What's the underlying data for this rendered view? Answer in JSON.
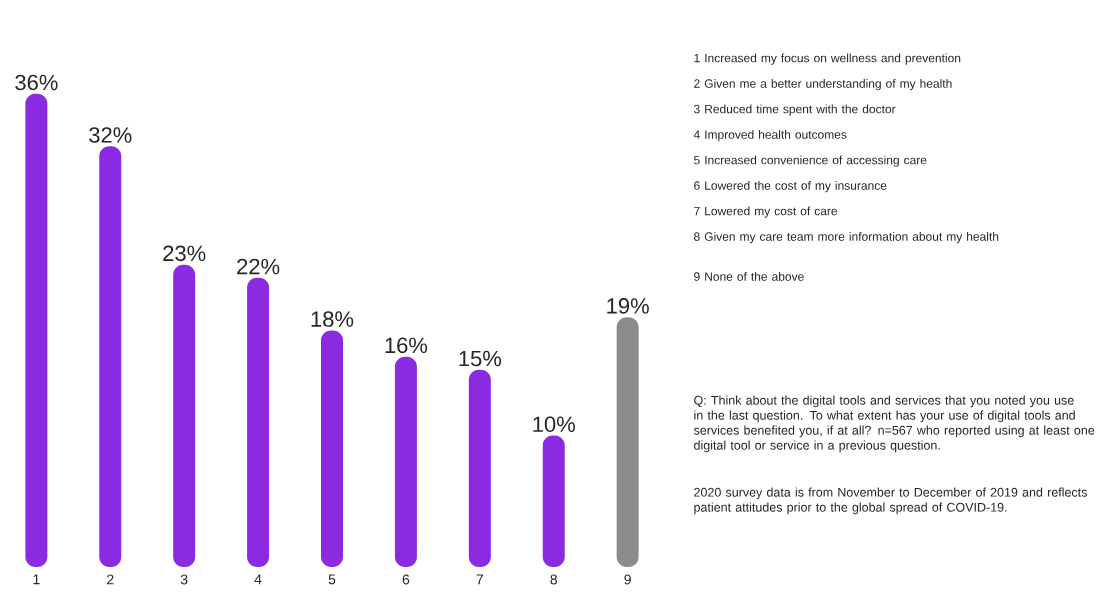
{
  "chart_data": {
    "type": "bar",
    "categories": [
      "1",
      "2",
      "3",
      "4",
      "5",
      "6",
      "7",
      "8",
      "9"
    ],
    "values": [
      36,
      32,
      23,
      22,
      18,
      16,
      15,
      10,
      19
    ],
    "value_labels": [
      "36%",
      "32%",
      "23%",
      "22%",
      "18%",
      "16%",
      "15%",
      "10%",
      "19%"
    ],
    "colors": [
      "#8a2be2",
      "#8a2be2",
      "#8a2be2",
      "#8a2be2",
      "#8a2be2",
      "#8a2be2",
      "#8a2be2",
      "#8a2be2",
      "#8c8c8c"
    ],
    "annotations": [
      "1 Increased my focus on wellness and prevention",
      "2 Given me a better understanding of my health",
      "3 Reduced time spent with the doctor",
      "4 Improved health outcomes",
      "5 Increased convenience of accessing care",
      "6 Lowered the cost of my insurance",
      "7 Lowered my cost of care",
      "8 Given my care team more information about my health",
      "9 None of the above",
      "Q: Think about the digital tools and services that you noted you use in the last question. To what extent has your use of digital tools and services benefited you, if at all? n=567 who reported using at least one digital tool or service in a previous question.",
      "2020 survey data is from November to December of 2019 and reflects patient attitudes prior to the global spread of COVID-19."
    ]
  }
}
